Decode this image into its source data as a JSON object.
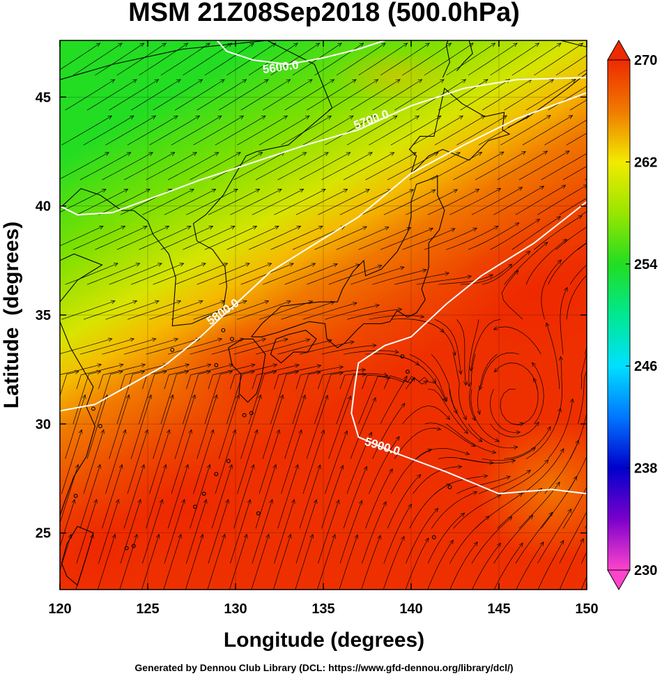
{
  "title": "MSM 21Z08Sep2018 (500.0hPa)",
  "credit": "Generated by Dennou Club Library (DCL: https://www.gfd-dennou.org/library/dcl/)",
  "chart_data": {
    "type": "heatmap",
    "xlabel": "Longitude (degrees)",
    "ylabel": "Latitude  (degrees)",
    "xlim": [
      120,
      150
    ],
    "ylim": [
      22.4,
      47.6
    ],
    "xticks": [
      120,
      125,
      130,
      135,
      140,
      145,
      150
    ],
    "yticks": [
      25,
      30,
      35,
      40,
      45
    ],
    "grid": true,
    "colorbar": {
      "range": [
        230,
        270
      ],
      "ticks": [
        230,
        238,
        246,
        254,
        262,
        270
      ],
      "stops": [
        {
          "value": 230,
          "color": "#ff44cc"
        },
        {
          "value": 234,
          "color": "#7a00cc"
        },
        {
          "value": 238,
          "color": "#0000cc"
        },
        {
          "value": 242,
          "color": "#0077ff"
        },
        {
          "value": 246,
          "color": "#00e0ff"
        },
        {
          "value": 250,
          "color": "#00e890"
        },
        {
          "value": 254,
          "color": "#22dd22"
        },
        {
          "value": 258,
          "color": "#99e600"
        },
        {
          "value": 262,
          "color": "#f2ea00"
        },
        {
          "value": 266,
          "color": "#f07a00"
        },
        {
          "value": 270,
          "color": "#ee2a00"
        }
      ]
    },
    "contours": [
      {
        "label": "5600.0",
        "label_at": [
          132.6,
          46.2
        ],
        "label_angle": -8,
        "points": [
          [
            128.5,
            48
          ],
          [
            129.5,
            47.1
          ],
          [
            131,
            46.7
          ],
          [
            133,
            46.5
          ],
          [
            135,
            46.8
          ],
          [
            137,
            47.2
          ],
          [
            138.5,
            47.6
          ]
        ]
      },
      {
        "label": "5700.0",
        "label_at": [
          137.8,
          43.8
        ],
        "label_angle": -20,
        "points": [
          [
            120,
            40
          ],
          [
            121,
            39.6
          ],
          [
            123,
            39.7
          ],
          [
            125,
            40.3
          ],
          [
            128,
            41.2
          ],
          [
            131,
            42
          ],
          [
            134,
            42.8
          ],
          [
            137,
            43.5
          ],
          [
            140,
            44.6
          ],
          [
            143,
            45.4
          ],
          [
            146,
            45.8
          ],
          [
            150,
            45.9
          ]
        ]
      },
      {
        "label": "5800.0",
        "label_at": [
          129.4,
          35.0
        ],
        "label_angle": -35,
        "points": [
          [
            120,
            30.6
          ],
          [
            122,
            30.9
          ],
          [
            124,
            31.8
          ],
          [
            126,
            32.7
          ],
          [
            128,
            34.0
          ],
          [
            130,
            35.5
          ],
          [
            132,
            37.0
          ],
          [
            134,
            38.0
          ],
          [
            137,
            39.5
          ],
          [
            140,
            41.5
          ],
          [
            143,
            42.8
          ],
          [
            146,
            44.0
          ],
          [
            150,
            45.2
          ]
        ]
      },
      {
        "label": "5900.0",
        "label_at": [
          138.3,
          28.8
        ],
        "label_angle": 17,
        "points": [
          [
            150,
            40.2
          ],
          [
            147,
            38.3
          ],
          [
            144,
            36.8
          ],
          [
            142,
            35.5
          ],
          [
            140,
            34.0
          ],
          [
            138.5,
            33.6
          ],
          [
            137,
            32.8
          ],
          [
            136.8,
            31.8
          ],
          [
            136.6,
            30.5
          ],
          [
            137,
            29.4
          ],
          [
            139,
            28.7
          ],
          [
            142,
            27.8
          ],
          [
            145,
            26.8
          ],
          [
            148,
            27.0
          ],
          [
            150,
            26.8
          ]
        ]
      }
    ]
  }
}
